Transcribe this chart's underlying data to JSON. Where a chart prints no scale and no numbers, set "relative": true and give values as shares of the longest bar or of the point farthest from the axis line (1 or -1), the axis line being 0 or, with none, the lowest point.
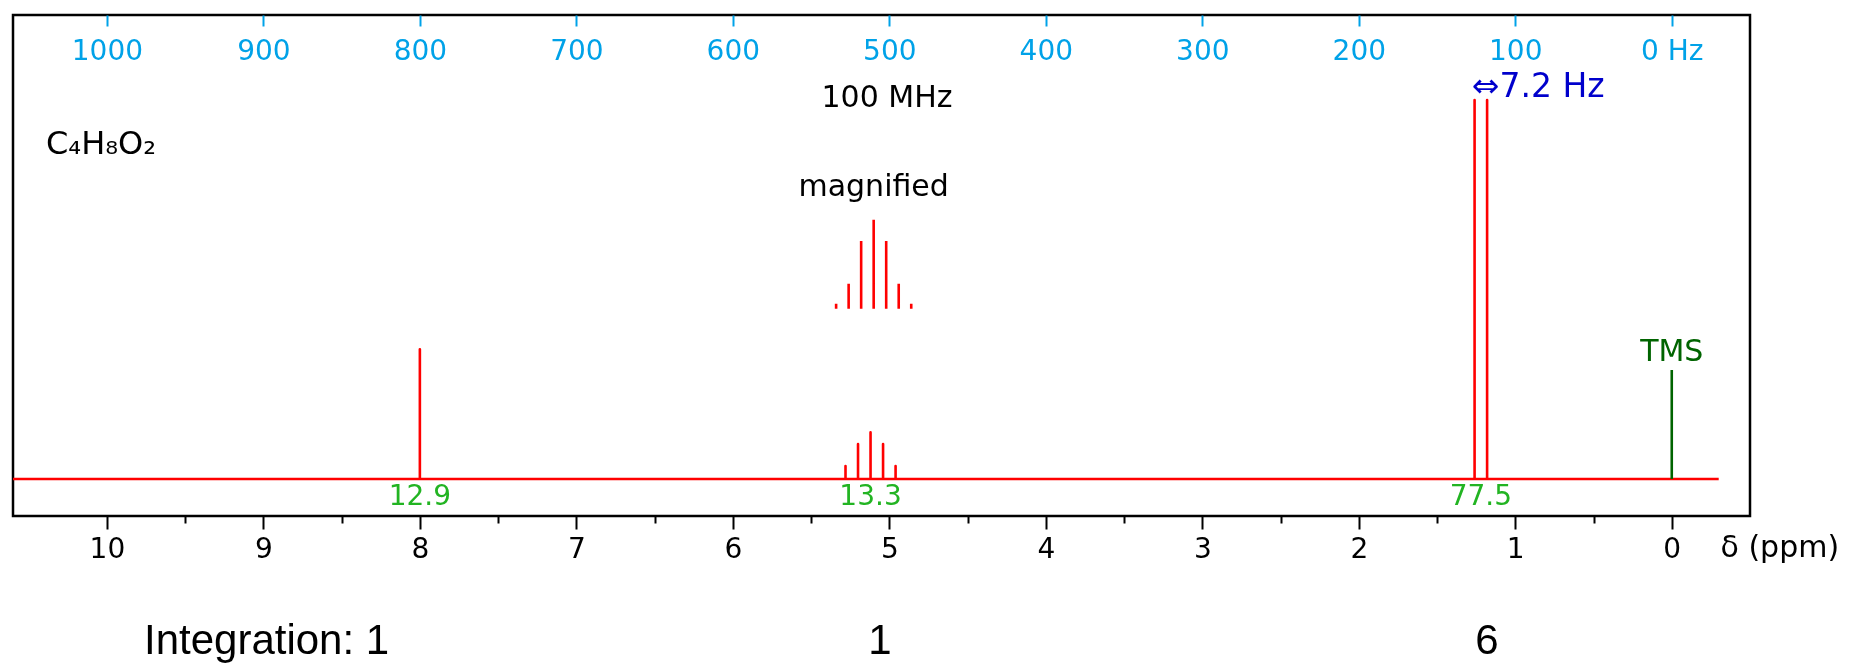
{
  "chart_data": {
    "type": "line",
    "relative": true,
    "grid": false,
    "xlabel": "δ (ppm)",
    "xlim": [
      10.6,
      -0.5
    ],
    "xticks": [
      10,
      {
        "value": 9.5,
        "label": null
      },
      9,
      {
        "value": 8.5,
        "label": null
      },
      8,
      {
        "value": 7.5,
        "label": null
      },
      7,
      {
        "value": 6.5,
        "label": null
      },
      6,
      {
        "value": 5.5,
        "label": null
      },
      5,
      {
        "value": 4.5,
        "label": null
      },
      4,
      {
        "value": 3.5,
        "label": null
      },
      3,
      {
        "value": 2.5,
        "label": null
      },
      2,
      {
        "value": 1.5,
        "label": null
      },
      1,
      {
        "value": 0.5,
        "label": null
      },
      0
    ],
    "x2lim": [
      1060,
      -50
    ],
    "x2ticks": [
      1000,
      900,
      800,
      700,
      600,
      500,
      400,
      300,
      200,
      100,
      {
        "value": 0,
        "label": "0 Hz"
      }
    ],
    "series": [
      {
        "color": "#ff0000",
        "x": [
          10.6,
          8,
          8,
          8,
          5.28,
          5.28,
          5.28,
          5.2,
          5.2,
          5.2,
          5.12,
          5.12,
          5.12,
          5.04,
          5.04,
          5.04,
          4.96,
          4.96,
          4.96,
          1.26,
          1.26,
          1.26,
          1.18,
          1.18,
          1.18,
          -0.3
        ],
        "values": [
          0.089,
          0.089,
          0.401,
          0.089,
          0.089,
          0.12,
          0.089,
          0.089,
          0.173,
          0.089,
          0.089,
          0.201,
          0.089,
          0.089,
          0.173,
          0.089,
          0.089,
          0.12,
          0.089,
          0.089,
          1,
          0.089,
          0.089,
          1,
          0.089,
          0.089
        ]
      },
      {
        "name": "magnified",
        "color": "#ff0000",
        "x": [
          5.34,
          5.34,
          null,
          5.26,
          5.26,
          null,
          5.18,
          5.18,
          null,
          5.1,
          5.1,
          null,
          5.02,
          5.02,
          null,
          4.94,
          4.94,
          null,
          4.86,
          4.86
        ],
        "values": [
          0.498,
          0.51,
          null,
          0.498,
          0.558,
          null,
          0.498,
          0.661,
          null,
          0.498,
          0.712,
          null,
          0.498,
          0.661,
          null,
          0.498,
          0.558,
          null,
          0.498,
          0.51
        ]
      },
      {
        "name": "TMS",
        "color": "#006400",
        "x": [
          0,
          0
        ],
        "values": [
          0.089,
          0.351
        ]
      }
    ],
    "annotations": [
      "C₄H₈O₂",
      "100 MHz",
      {
        "text": "⇔7.2 Hz",
        "x": 1.22,
        "y": 1
      },
      {
        "text": "12.9",
        "x": 8,
        "y": 0.089
      },
      {
        "text": "13.3",
        "x": 5.12,
        "y": 0.089
      },
      {
        "text": "77.5",
        "x": 1.22,
        "y": 0.089
      },
      "Integration: 1",
      "1",
      "6"
    ]
  }
}
